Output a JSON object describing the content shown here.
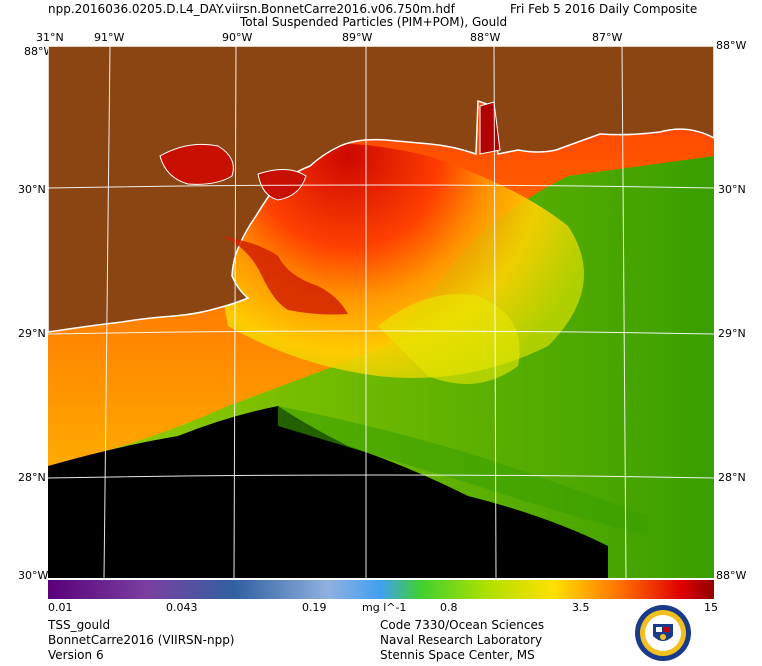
{
  "header": {
    "filename": "npp.2016036.0205.D.L4_DAY.viirsn.BonnetCarre2016.v06.750m.hdf",
    "date": "Fri Feb  5 2016 Daily Composite",
    "product": "Total Suspended Particles (PIM+POM), Gould"
  },
  "map": {
    "lon_labels": [
      "91°W",
      "90°W",
      "89°W",
      "88°W",
      "87°W"
    ],
    "lat_labels": [
      "30°N",
      "29°N",
      "28°N"
    ],
    "corner_top": "31°N",
    "corner_bottom": "30°W",
    "corner_right_top": "88°W",
    "corner_right_bottom": "88°W",
    "colors": {
      "land": "#8b4513",
      "coast": "#ffffff",
      "grid": "#ffffff",
      "no_data": "#000000",
      "high_tss": "#d40000",
      "mid_tss": "#ffcc00",
      "low_tss": "#3aa000"
    }
  },
  "colorbar": {
    "scale": "log",
    "min": 0.01,
    "max": 15,
    "tick_labels": [
      "0.01",
      "0.043",
      "0.19",
      "0.8",
      "3.5",
      "15"
    ],
    "units": "mg l^-1"
  },
  "footer": {
    "left": [
      "TSS_gould",
      "BonnetCarre2016 (VIIRSN-npp)",
      "Version 6"
    ],
    "right": [
      "Code 7330/Ocean Sciences",
      "Naval Research Laboratory",
      "Stennis Space Center, MS"
    ]
  },
  "logo": {
    "icon": "navy-seal-icon"
  }
}
